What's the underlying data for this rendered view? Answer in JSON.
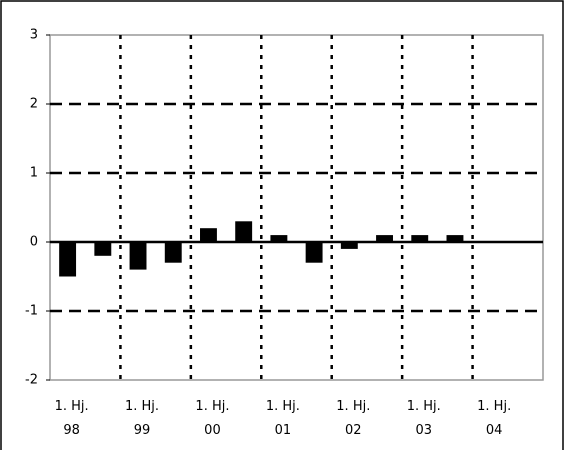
{
  "chart_data": {
    "type": "bar",
    "categories": [
      "1. Hj.\n98",
      null,
      "1. Hj.\n99",
      null,
      "1. Hj.\n00",
      null,
      "1. Hj.\n01",
      null,
      "1. Hj.\n02",
      null,
      "1. Hj.\n03",
      null,
      "1. Hj.\n04",
      null
    ],
    "values": [
      -0.5,
      -0.2,
      -0.4,
      -0.3,
      0.2,
      0.3,
      0.1,
      -0.3,
      -0.1,
      0.1,
      0.1,
      0.1,
      null,
      null
    ],
    "color": "#000000",
    "ylim": [
      -2,
      3
    ],
    "yticks": [
      -2,
      -1,
      0,
      1,
      2,
      3
    ],
    "grid": true
  }
}
